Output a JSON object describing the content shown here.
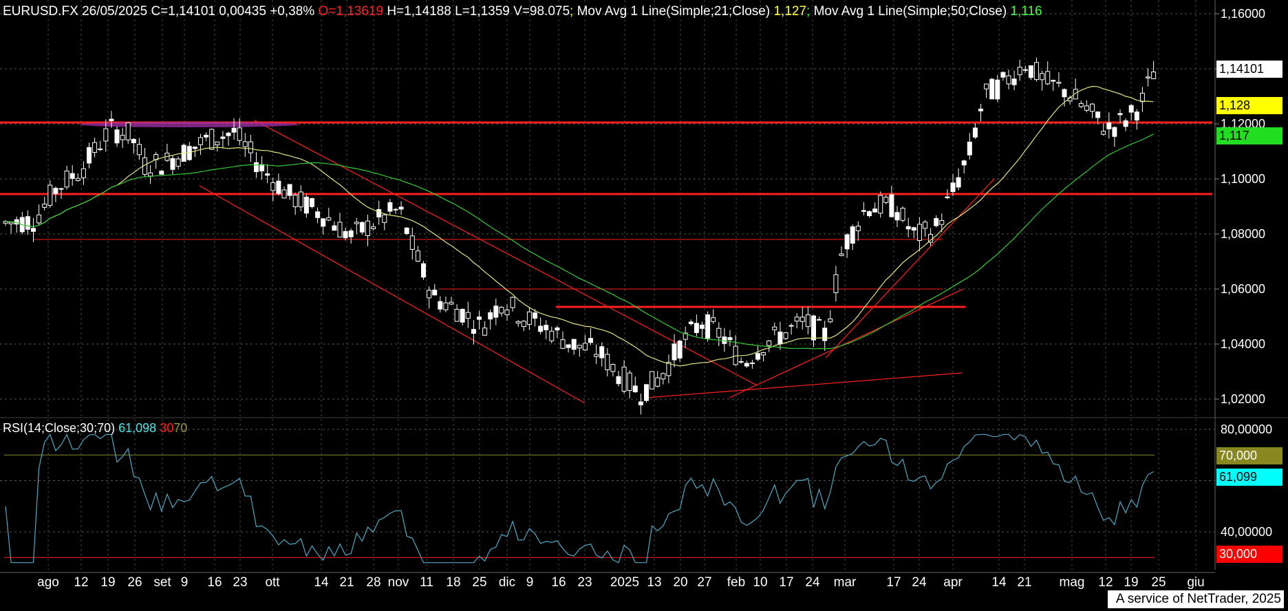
{
  "header": {
    "symbol_date": "EURUSD.FX 26/05/2025",
    "close": "C=1,14101",
    "change": "0,00435",
    "change_pct": "+0,38%",
    "open": "O=1,13619",
    "high": "H=1,14188",
    "low": "L=1,1359",
    "volume": "V=98.075",
    "ma21_label": "Mov Avg 1 Line(Simple;21;Close)",
    "ma21_value": "1,127",
    "ma50_label": "Mov Avg 1 Line(Simple;50;Close)",
    "ma50_value": "1,116"
  },
  "rsi_header": {
    "label": "RSI(14;Close;30;70)",
    "value": "61,098",
    "lower": "30",
    "upper": "70"
  },
  "price_tags": {
    "last": "1,14101",
    "ma21": "1,128",
    "ma50": "1,117"
  },
  "rsi_tags": {
    "upper": "70,000",
    "current": "61,099",
    "lower": "30,000"
  },
  "footer": "A service of NetTrader, 2025",
  "colors": {
    "background": "#000000",
    "candle": "#ffffff",
    "ma21": "#e6e680",
    "ma50": "#33cc33",
    "support": "#ff2020",
    "rsi_line": "#4fa9c2",
    "rsi_upper": "#8a8a30",
    "rsi_lower": "#ff2020"
  },
  "chart_data": [
    {
      "type": "candlestick",
      "title": "EURUSD.FX",
      "ylim": [
        1.01,
        1.165
      ],
      "y_ticks": [
        "1,16000",
        "1,14000",
        "1,12000",
        "1,10000",
        "1,08000",
        "1,06000",
        "1,04000",
        "1,02000"
      ],
      "y_tick_values": [
        1.16,
        1.14,
        1.12,
        1.1,
        1.08,
        1.06,
        1.04,
        1.02
      ],
      "x_tick_labels": [
        "ago",
        "12",
        "19",
        "26",
        "set",
        "9",
        "16",
        "23",
        "ott",
        "14",
        "21",
        "28",
        "nov",
        "11",
        "18",
        "25",
        "dic",
        "9",
        "16",
        "23",
        "2025",
        "13",
        "20",
        "27",
        "feb",
        "10",
        "17",
        "24",
        "mar",
        "17",
        "24",
        "apr",
        "14",
        "21",
        "mag",
        "12",
        "19",
        "25",
        "giu"
      ],
      "horizontal_levels": [
        1.1205,
        1.0945,
        1.078,
        1.06,
        1.0535
      ],
      "ma21_last": 1.127,
      "ma50_last": 1.116,
      "last_close": 1.14101
    },
    {
      "type": "line",
      "title": "RSI(14;Close;30;70)",
      "ylim": [
        25,
        90
      ],
      "y_ticks": [
        "80,00000",
        "40,00000"
      ],
      "y_tick_values": [
        80,
        40
      ],
      "levels": [
        70,
        30
      ],
      "last_value": 61.099
    }
  ]
}
